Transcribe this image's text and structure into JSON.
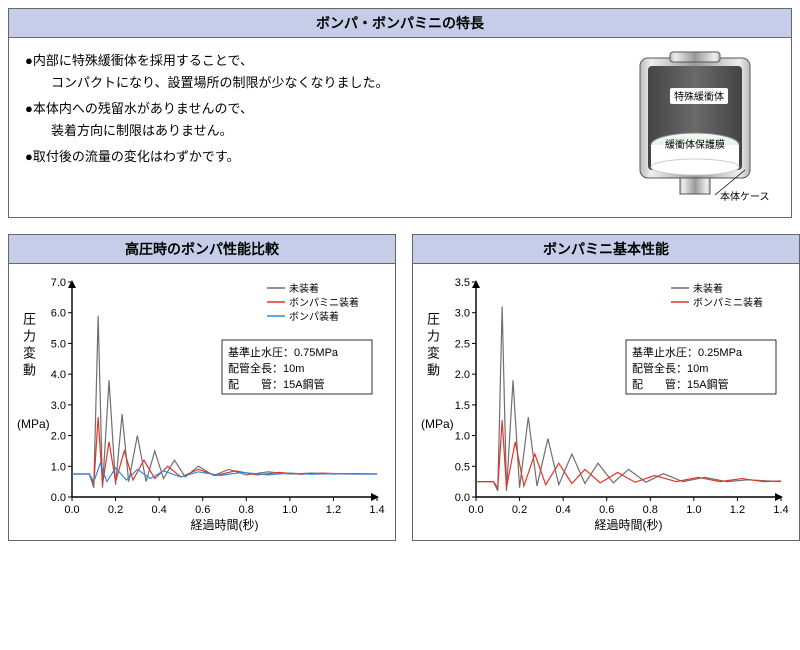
{
  "features_panel": {
    "title": "ボンパ・ボンパミニの特長",
    "bullets": [
      "●内部に特殊緩衝体を採用することで、\n　コンパクトになり、設置場所の制限が少なくなりました。",
      "●本体内への残留水がありませんので、\n　装着方向に制限はありません。",
      "●取付後の流量の変化はわずかです。"
    ],
    "diagram": {
      "label_buffer": "特殊緩衝体",
      "label_membrane": "緩衝体保護膜",
      "label_case": "本体ケース",
      "colors": {
        "case": "#9a9a9a",
        "buffer": "#5a5a5a",
        "membrane": "#e8f4ea",
        "inner": "#ffffff"
      }
    }
  },
  "chart_left": {
    "title": "高圧時のボンパ性能比較",
    "type": "line",
    "ylabel": "圧力変動",
    "yunit": "(MPa)",
    "xlabel": "経過時間(秒)",
    "xlim": [
      0,
      1.4
    ],
    "xtick_step": 0.2,
    "ylim": [
      0,
      7.0
    ],
    "ytick_step": 1.0,
    "legend": [
      {
        "label": "未装着",
        "color": "#706f6f"
      },
      {
        "label": "ボンパミニ装着",
        "color": "#e63329"
      },
      {
        "label": "ボンパ装着",
        "color": "#2a8be0"
      }
    ],
    "conditions": [
      {
        "k": "基準止水圧",
        "v": "0.75MPa"
      },
      {
        "k": "配管全長",
        "v": "10m"
      },
      {
        "k": "配　　管",
        "v": "15A鋼管"
      }
    ],
    "series": {
      "gray": [
        [
          0,
          0.75
        ],
        [
          0.08,
          0.75
        ],
        [
          0.1,
          0.3
        ],
        [
          0.12,
          5.9
        ],
        [
          0.14,
          0.3
        ],
        [
          0.17,
          3.8
        ],
        [
          0.2,
          0.4
        ],
        [
          0.23,
          2.7
        ],
        [
          0.26,
          0.5
        ],
        [
          0.3,
          2.0
        ],
        [
          0.34,
          0.5
        ],
        [
          0.38,
          1.5
        ],
        [
          0.42,
          0.6
        ],
        [
          0.47,
          1.2
        ],
        [
          0.52,
          0.65
        ],
        [
          0.58,
          1.0
        ],
        [
          0.65,
          0.7
        ],
        [
          0.72,
          0.9
        ],
        [
          0.8,
          0.72
        ],
        [
          0.9,
          0.82
        ],
        [
          1.0,
          0.75
        ],
        [
          1.1,
          0.78
        ],
        [
          1.2,
          0.75
        ],
        [
          1.3,
          0.76
        ],
        [
          1.4,
          0.75
        ]
      ],
      "red": [
        [
          0,
          0.75
        ],
        [
          0.08,
          0.75
        ],
        [
          0.1,
          0.4
        ],
        [
          0.12,
          2.6
        ],
        [
          0.14,
          0.4
        ],
        [
          0.17,
          1.8
        ],
        [
          0.2,
          0.5
        ],
        [
          0.24,
          1.5
        ],
        [
          0.28,
          0.55
        ],
        [
          0.33,
          1.2
        ],
        [
          0.38,
          0.6
        ],
        [
          0.44,
          1.0
        ],
        [
          0.5,
          0.65
        ],
        [
          0.58,
          0.9
        ],
        [
          0.66,
          0.7
        ],
        [
          0.75,
          0.85
        ],
        [
          0.85,
          0.72
        ],
        [
          0.95,
          0.8
        ],
        [
          1.05,
          0.74
        ],
        [
          1.15,
          0.78
        ],
        [
          1.25,
          0.75
        ],
        [
          1.4,
          0.75
        ]
      ],
      "blue": [
        [
          0,
          0.75
        ],
        [
          0.08,
          0.75
        ],
        [
          0.1,
          0.5
        ],
        [
          0.13,
          1.1
        ],
        [
          0.16,
          0.5
        ],
        [
          0.2,
          0.95
        ],
        [
          0.25,
          0.55
        ],
        [
          0.3,
          0.9
        ],
        [
          0.36,
          0.6
        ],
        [
          0.42,
          0.85
        ],
        [
          0.5,
          0.65
        ],
        [
          0.58,
          0.82
        ],
        [
          0.68,
          0.7
        ],
        [
          0.78,
          0.8
        ],
        [
          0.9,
          0.72
        ],
        [
          1.0,
          0.78
        ],
        [
          1.1,
          0.74
        ],
        [
          1.2,
          0.76
        ],
        [
          1.3,
          0.75
        ],
        [
          1.4,
          0.75
        ]
      ]
    },
    "line_width": 1.2,
    "background_color": "#ffffff",
    "axis_color": "#000000",
    "label_fontsize": 11
  },
  "chart_right": {
    "title": "ボンパミニ基本性能",
    "type": "line",
    "ylabel": "圧力変動",
    "yunit": "(MPa)",
    "xlabel": "経過時間(秒)",
    "xlim": [
      0,
      1.4
    ],
    "xtick_step": 0.2,
    "ylim": [
      0,
      3.5
    ],
    "ytick_step": 0.5,
    "legend": [
      {
        "label": "未装着",
        "color": "#706f6f"
      },
      {
        "label": "ボンパミニ装着",
        "color": "#e63329"
      }
    ],
    "conditions": [
      {
        "k": "基準止水圧",
        "v": "0.25MPa"
      },
      {
        "k": "配管全長",
        "v": "10m"
      },
      {
        "k": "配　　管",
        "v": "15A鋼管"
      }
    ],
    "series": {
      "gray": [
        [
          0,
          0.25
        ],
        [
          0.08,
          0.25
        ],
        [
          0.1,
          0.1
        ],
        [
          0.12,
          3.1
        ],
        [
          0.14,
          0.1
        ],
        [
          0.17,
          1.9
        ],
        [
          0.2,
          0.15
        ],
        [
          0.24,
          1.3
        ],
        [
          0.28,
          0.18
        ],
        [
          0.33,
          0.95
        ],
        [
          0.38,
          0.2
        ],
        [
          0.44,
          0.7
        ],
        [
          0.5,
          0.22
        ],
        [
          0.56,
          0.55
        ],
        [
          0.63,
          0.23
        ],
        [
          0.7,
          0.45
        ],
        [
          0.78,
          0.24
        ],
        [
          0.86,
          0.38
        ],
        [
          0.95,
          0.25
        ],
        [
          1.05,
          0.32
        ],
        [
          1.15,
          0.25
        ],
        [
          1.25,
          0.28
        ],
        [
          1.4,
          0.25
        ]
      ],
      "red": [
        [
          0,
          0.25
        ],
        [
          0.08,
          0.25
        ],
        [
          0.1,
          0.15
        ],
        [
          0.12,
          1.25
        ],
        [
          0.14,
          0.15
        ],
        [
          0.18,
          0.9
        ],
        [
          0.22,
          0.18
        ],
        [
          0.27,
          0.7
        ],
        [
          0.32,
          0.2
        ],
        [
          0.38,
          0.55
        ],
        [
          0.44,
          0.22
        ],
        [
          0.5,
          0.45
        ],
        [
          0.57,
          0.23
        ],
        [
          0.65,
          0.4
        ],
        [
          0.73,
          0.24
        ],
        [
          0.82,
          0.35
        ],
        [
          0.92,
          0.25
        ],
        [
          1.02,
          0.32
        ],
        [
          1.12,
          0.25
        ],
        [
          1.22,
          0.3
        ],
        [
          1.32,
          0.25
        ],
        [
          1.4,
          0.26
        ]
      ]
    },
    "line_width": 1.2,
    "background_color": "#ffffff",
    "axis_color": "#000000",
    "label_fontsize": 11
  }
}
